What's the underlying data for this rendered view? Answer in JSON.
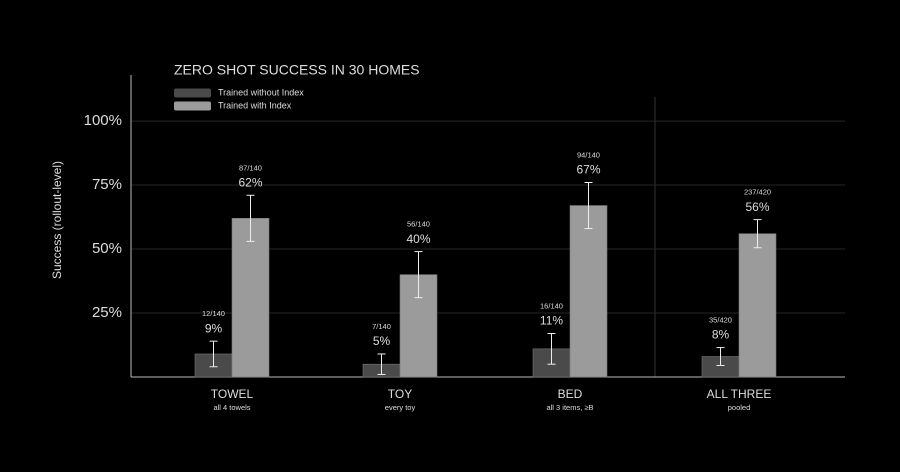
{
  "chart_data": {
    "type": "bar",
    "title": "ZERO SHOT SUCCESS IN 30 HOMES",
    "y_label": "Success (rollout-level)",
    "categories": [
      "TOWEL",
      "TOY",
      "BED",
      "ALL THREE"
    ],
    "category_notes": [
      "all 4 towels",
      "every toy",
      "all 3 items, ≥B",
      "pooled"
    ],
    "series": [
      {
        "name": "Trained without Index",
        "color": "#4a4a4a",
        "values": [
          9,
          5,
          11,
          8
        ],
        "errors": [
          5,
          4,
          6,
          3.5
        ],
        "value_labels": [
          "9%",
          "5%",
          "11%",
          "8%"
        ],
        "counts": [
          "12/140",
          "7/140",
          "16/140",
          "35/420"
        ]
      },
      {
        "name": "Trained with Index",
        "color": "#9b9b9b",
        "values": [
          62,
          40,
          67,
          56
        ],
        "errors": [
          9,
          9,
          9,
          5.5
        ],
        "value_labels": [
          "62%",
          "40%",
          "67%",
          "56%"
        ],
        "counts": [
          "87/140",
          "56/140",
          "94/140",
          "237/420"
        ]
      }
    ],
    "ylim": [
      0,
      118
    ],
    "yticks": [
      {
        "value": 25,
        "label": "25%"
      },
      {
        "value": 50,
        "label": "50%"
      },
      {
        "value": 75,
        "label": "75%"
      },
      {
        "value": 100,
        "label": "100%"
      }
    ],
    "grid": true
  }
}
